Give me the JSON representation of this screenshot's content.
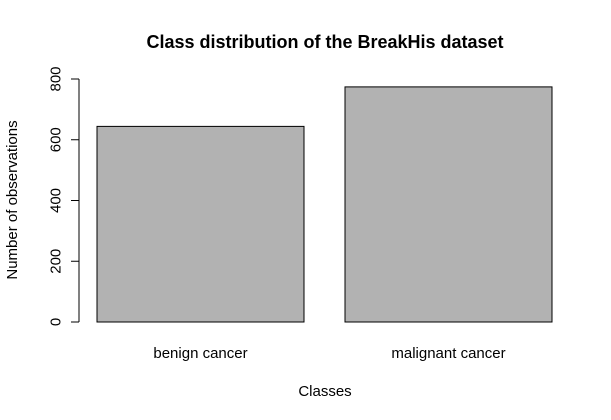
{
  "chart_data": {
    "type": "bar",
    "title": "Class distribution of the BreakHis dataset",
    "xlabel": "Classes",
    "ylabel": "Number of observations",
    "categories": [
      "benign cancer",
      "malignant cancer"
    ],
    "values": [
      644,
      774
    ],
    "ylim": [
      0,
      800
    ],
    "yticks": [
      "0",
      "200",
      "400",
      "600",
      "800"
    ],
    "grid": false,
    "bar_color": "#b2b2b2",
    "edge_color": "#000000"
  }
}
